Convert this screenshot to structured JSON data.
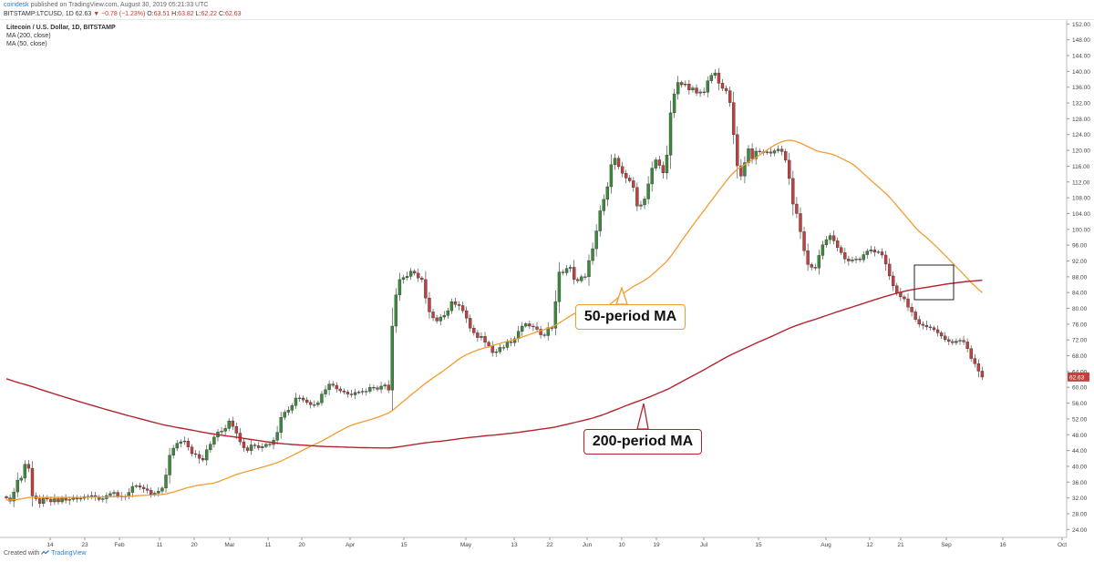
{
  "header": {
    "author": "coindesk",
    "published": "published on TradingView.com, August 30, 2019 05:21:33 UTC",
    "symbol": "BITSTAMP:LTCUSD, 1D",
    "last": "62.63",
    "change": "▼ −0.78 (−1.23%)",
    "o_label": "O:",
    "o_value": "63.51",
    "h_label": "H:",
    "h_value": "63.82",
    "l_label": "L:",
    "l_value": "62.22",
    "c_label": "C:",
    "c_value": "62.63"
  },
  "legend": {
    "title": "Litecoin / U.S. Dollar, 1D, BITSTAMP",
    "ma200": "MA (200, close)",
    "ma50": "MA (50, close)"
  },
  "footer": {
    "created_with": "Created with",
    "brand": "TradingView"
  },
  "annotations": {
    "ma50_label": "50-period MA",
    "ma200_label": "200-period MA"
  },
  "colors": {
    "up": "#3a8c3a",
    "down": "#c4403f",
    "ma50": "#f39c32",
    "ma200": "#b5242d",
    "last_price_bg": "#c4403f"
  },
  "chart_data": {
    "type": "candlestick",
    "title": "Litecoin / U.S. Dollar, 1D, BITSTAMP",
    "ylim": [
      22,
      153
    ],
    "y_ticks": [
      "24.00",
      "28.00",
      "32.00",
      "36.00",
      "40.00",
      "44.00",
      "48.00",
      "52.00",
      "56.00",
      "60.00",
      "64.00",
      "68.00",
      "72.00",
      "76.00",
      "80.00",
      "84.00",
      "88.00",
      "92.00",
      "96.00",
      "100.00",
      "104.00",
      "108.00",
      "112.00",
      "116.00",
      "120.00",
      "124.00",
      "128.00",
      "132.00",
      "136.00",
      "140.00",
      "144.00",
      "148.00",
      "152.00"
    ],
    "x_ticks": [
      "14",
      "23",
      "Feb",
      "11",
      "20",
      "Mar",
      "11",
      "20",
      "Apr",
      "15",
      "May",
      "13",
      "22",
      "Jun",
      "10",
      "19",
      "Jul",
      "15",
      "Aug",
      "12",
      "21",
      "Sep",
      "16",
      "Oct"
    ],
    "last_price_label": "62.63",
    "close_series": [
      32.0,
      31.2,
      33.5,
      36.5,
      37.0,
      40.5,
      39.5,
      32.5,
      31.8,
      30.6,
      32.0,
      31.7,
      31.0,
      31.8,
      31.0,
      32.0,
      31.4,
      31.6,
      32.0,
      31.7,
      31.9,
      32.3,
      32.4,
      32.6,
      32.3,
      31.6,
      31.8,
      32.6,
      33.1,
      33.4,
      32.5,
      32.2,
      32.4,
      33.4,
      34.9,
      35.1,
      34.7,
      34.3,
      33.9,
      32.9,
      33.2,
      33.7,
      34.5,
      37.8,
      42.8,
      44.6,
      45.8,
      46.2,
      46.4,
      44.9,
      43.2,
      43.0,
      42.0,
      41.6,
      44.2,
      45.6,
      47.4,
      48.7,
      48.9,
      49.6,
      51.5,
      50.1,
      48.4,
      46.2,
      44.7,
      44.0,
      45.4,
      45.2,
      44.7,
      45.0,
      45.6,
      45.5,
      46.6,
      48.6,
      52.4,
      53.7,
      54.2,
      55.4,
      57.3,
      57.3,
      56.8,
      56.2,
      55.6,
      55.6,
      56.1,
      58.3,
      59.4,
      60.8,
      60.5,
      59.6,
      59.1,
      58.8,
      58.3,
      58.1,
      58.7,
      58.8,
      59.0,
      59.0,
      60.0,
      59.9,
      59.5,
      60.3,
      60.6,
      59.3,
      75.5,
      83.4,
      87.3,
      87.8,
      88.1,
      89.4,
      88.9,
      87.7,
      87.3,
      82.6,
      79.1,
      77.6,
      76.8,
      77.8,
      78.2,
      79.4,
      81.7,
      81.0,
      80.7,
      79.4,
      77.5,
      75.0,
      73.8,
      72.6,
      72.9,
      71.4,
      70.5,
      68.8,
      69.0,
      70.1,
      70.1,
      71.5,
      71.3,
      72.3,
      74.2,
      75.5,
      76.1,
      75.5,
      75.3,
      74.7,
      73.3,
      73.1,
      75.1,
      75.0,
      81.7,
      89.2,
      89.0,
      90.1,
      90.4,
      87.3,
      87.0,
      88.0,
      88.0,
      92.1,
      95.1,
      99.6,
      104.7,
      107.6,
      110.8,
      116.4,
      118.0,
      115.9,
      114.2,
      113.0,
      112.3,
      110.6,
      105.9,
      106.2,
      107.7,
      111.5,
      115.5,
      117.6,
      116.2,
      114.3,
      118.8,
      129.5,
      134.3,
      137.2,
      136.6,
      136.8,
      135.3,
      135.8,
      134.5,
      134.8,
      134.7,
      137.6,
      139.0,
      139.6,
      137.0,
      135.7,
      135.1,
      132.1,
      124.0,
      116.1,
      113.5,
      116.9,
      120.4,
      117.9,
      119.8,
      119.6,
      119.5,
      119.6,
      119.3,
      119.9,
      120.3,
      119.7,
      117.5,
      112.9,
      106.4,
      104.0,
      99.4,
      94.6,
      91.1,
      90.4,
      90.2,
      93.4,
      96.1,
      97.4,
      98.4,
      97.1,
      95.4,
      94.1,
      92.5,
      92.0,
      92.3,
      92.5,
      92.3,
      93.6,
      94.5,
      94.8,
      94.2,
      94.3,
      93.5,
      91.2,
      88.2,
      85.7,
      84.0,
      82.9,
      82.4,
      80.3,
      79.1,
      77.2,
      76.0,
      75.7,
      75.3,
      75.1,
      74.6,
      73.8,
      73.0,
      72.1,
      71.6,
      71.3,
      71.7,
      71.9,
      71.5,
      69.8,
      67.3,
      66.0,
      64.1,
      62.6
    ]
  }
}
